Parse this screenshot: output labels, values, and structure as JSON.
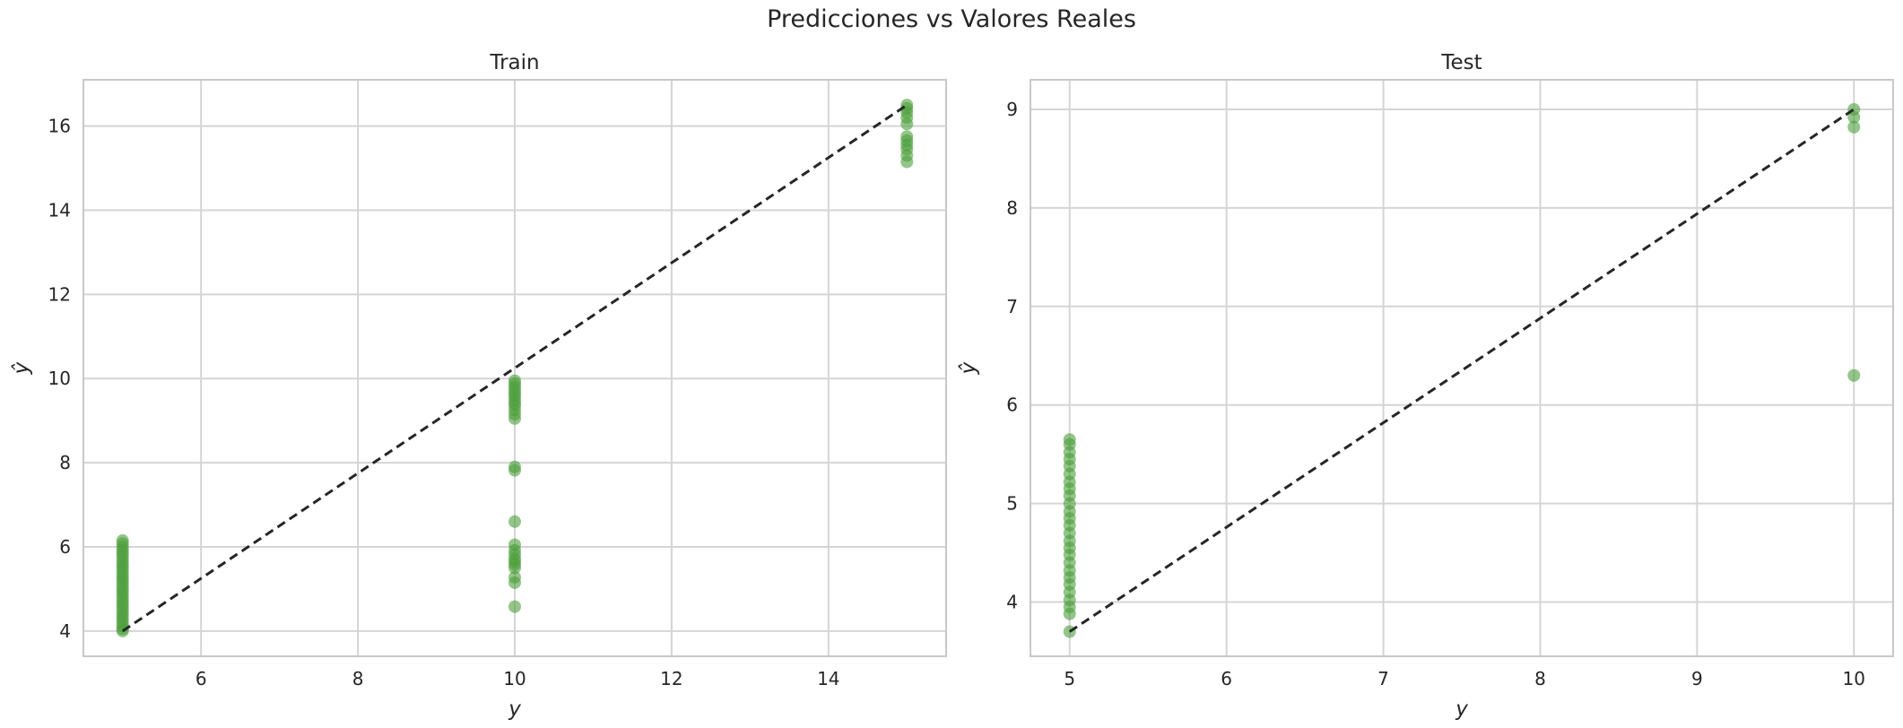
{
  "figure": {
    "title": "Predicciones vs Valores Reales"
  },
  "colors": {
    "point": "#4c9e3c",
    "identity_line": "#262626",
    "grid": "#d5d5d5",
    "spine": "#c8c8c8",
    "background": "#ffffff"
  },
  "chart_data": [
    {
      "type": "scatter",
      "title": "Train",
      "xlabel": "y",
      "ylabel": "ŷ",
      "xlim": [
        4.5,
        15.5
      ],
      "ylim": [
        3.4,
        17.1
      ],
      "xticks": [
        6,
        8,
        10,
        12,
        14
      ],
      "yticks": [
        4,
        6,
        8,
        10,
        12,
        14,
        16
      ],
      "grid": true,
      "identity_line": {
        "x": [
          5,
          15
        ],
        "y": [
          4.0,
          16.5
        ]
      },
      "points": [
        [
          5,
          4.0
        ],
        [
          5,
          4.05
        ],
        [
          5,
          4.12
        ],
        [
          5,
          4.2
        ],
        [
          5,
          4.28
        ],
        [
          5,
          4.35
        ],
        [
          5,
          4.42
        ],
        [
          5,
          4.5
        ],
        [
          5,
          4.58
        ],
        [
          5,
          4.65
        ],
        [
          5,
          4.72
        ],
        [
          5,
          4.8
        ],
        [
          5,
          4.88
        ],
        [
          5,
          4.95
        ],
        [
          5,
          5.02
        ],
        [
          5,
          5.1
        ],
        [
          5,
          5.18
        ],
        [
          5,
          5.25
        ],
        [
          5,
          5.32
        ],
        [
          5,
          5.4
        ],
        [
          5,
          5.48
        ],
        [
          5,
          5.55
        ],
        [
          5,
          5.62
        ],
        [
          5,
          5.7
        ],
        [
          5,
          5.78
        ],
        [
          5,
          5.85
        ],
        [
          5,
          5.92
        ],
        [
          5,
          6.0
        ],
        [
          5,
          6.08
        ],
        [
          5,
          6.15
        ],
        [
          10,
          4.58
        ],
        [
          10,
          5.15
        ],
        [
          10,
          5.28
        ],
        [
          10,
          5.5
        ],
        [
          10,
          5.58
        ],
        [
          10,
          5.65
        ],
        [
          10,
          5.72
        ],
        [
          10,
          5.82
        ],
        [
          10,
          5.92
        ],
        [
          10,
          6.05
        ],
        [
          10,
          6.6
        ],
        [
          10,
          7.82
        ],
        [
          10,
          7.9
        ],
        [
          10,
          9.05
        ],
        [
          10,
          9.15
        ],
        [
          10,
          9.25
        ],
        [
          10,
          9.35
        ],
        [
          10,
          9.42
        ],
        [
          10,
          9.5
        ],
        [
          10,
          9.58
        ],
        [
          10,
          9.65
        ],
        [
          10,
          9.72
        ],
        [
          10,
          9.8
        ],
        [
          10,
          9.88
        ],
        [
          10,
          9.95
        ],
        [
          15,
          15.15
        ],
        [
          15,
          15.3
        ],
        [
          15,
          15.45
        ],
        [
          15,
          15.55
        ],
        [
          15,
          15.65
        ],
        [
          15,
          15.75
        ],
        [
          15,
          16.05
        ],
        [
          15,
          16.2
        ],
        [
          15,
          16.32
        ],
        [
          15,
          16.42
        ],
        [
          15,
          16.5
        ]
      ]
    },
    {
      "type": "scatter",
      "title": "Test",
      "xlabel": "y",
      "ylabel": "ŷ",
      "xlim": [
        4.75,
        10.25
      ],
      "ylim": [
        3.45,
        9.3
      ],
      "xticks": [
        5,
        6,
        7,
        8,
        9,
        10
      ],
      "yticks": [
        4,
        5,
        6,
        7,
        8,
        9
      ],
      "grid": true,
      "identity_line": {
        "x": [
          5,
          10
        ],
        "y": [
          3.7,
          9.0
        ]
      },
      "points": [
        [
          5,
          3.7
        ],
        [
          5,
          3.88
        ],
        [
          5,
          3.95
        ],
        [
          5,
          4.02
        ],
        [
          5,
          4.1
        ],
        [
          5,
          4.18
        ],
        [
          5,
          4.25
        ],
        [
          5,
          4.32
        ],
        [
          5,
          4.4
        ],
        [
          5,
          4.48
        ],
        [
          5,
          4.55
        ],
        [
          5,
          4.62
        ],
        [
          5,
          4.7
        ],
        [
          5,
          4.78
        ],
        [
          5,
          4.85
        ],
        [
          5,
          4.92
        ],
        [
          5,
          5.0
        ],
        [
          5,
          5.08
        ],
        [
          5,
          5.15
        ],
        [
          5,
          5.22
        ],
        [
          5,
          5.3
        ],
        [
          5,
          5.38
        ],
        [
          5,
          5.45
        ],
        [
          5,
          5.52
        ],
        [
          5,
          5.6
        ],
        [
          5,
          5.65
        ],
        [
          10,
          6.3
        ],
        [
          10,
          8.82
        ],
        [
          10,
          8.92
        ],
        [
          10,
          9.0
        ]
      ]
    }
  ]
}
